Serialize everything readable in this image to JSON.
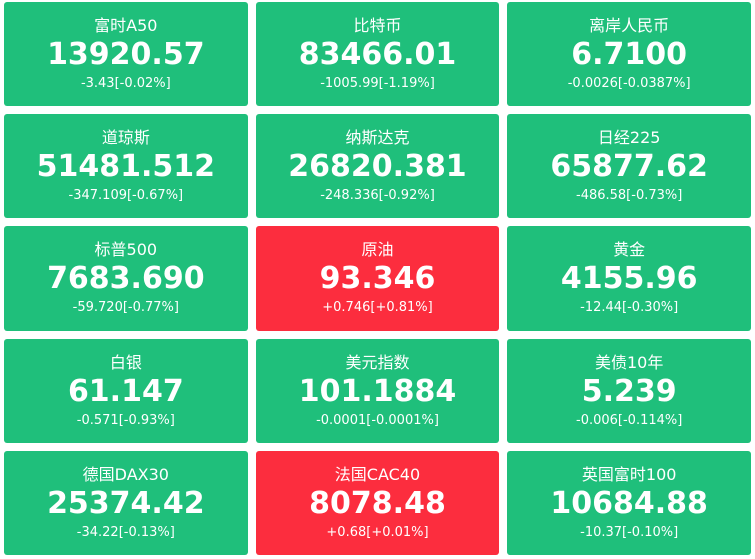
{
  "tiles": [
    {
      "name": "富时A50",
      "price": "13920.57",
      "change": "-3.43[-0.02%]",
      "color": "#1fbf7b"
    },
    {
      "name": "比特币",
      "price": "83466.01",
      "change": "-1005.99[-1.19%]",
      "color": "#1fbf7b"
    },
    {
      "name": "离岸人民币",
      "price": "6.7100",
      "change": "-0.0026[-0.0387%]",
      "color": "#1fbf7b"
    },
    {
      "name": "道琼斯",
      "price": "51481.512",
      "change": "-347.109[-0.67%]",
      "color": "#1fbf7b"
    },
    {
      "name": "纳斯达克",
      "price": "26820.381",
      "change": "-248.336[-0.92%]",
      "color": "#1fbf7b"
    },
    {
      "name": "日经225",
      "price": "65877.62",
      "change": "-486.58[-0.73%]",
      "color": "#1fbf7b"
    },
    {
      "name": "标普500",
      "price": "7683.690",
      "change": "-59.720[-0.77%]",
      "color": "#1fbf7b"
    },
    {
      "name": "原油",
      "price": "93.346",
      "change": "+0.746[+0.81%]",
      "color": "#fc2d3e"
    },
    {
      "name": "黄金",
      "price": "4155.96",
      "change": "-12.44[-0.30%]",
      "color": "#1fbf7b"
    },
    {
      "name": "白银",
      "price": "61.147",
      "change": "-0.571[-0.93%]",
      "color": "#1fbf7b"
    },
    {
      "name": "美元指数",
      "price": "101.1884",
      "change": "-0.0001[-0.0001%]",
      "color": "#1fbf7b"
    },
    {
      "name": "美债10年",
      "price": "5.239",
      "change": "-0.006[-0.114%]",
      "color": "#1fbf7b"
    },
    {
      "name": "德国DAX30",
      "price": "25374.42",
      "change": "-34.22[-0.13%]",
      "color": "#1fbf7b"
    },
    {
      "name": "法国CAC40",
      "price": "8078.48",
      "change": "+0.68[+0.01%]",
      "color": "#fc2d3e"
    },
    {
      "name": "英国富时100",
      "price": "10684.88",
      "change": "-10.37[-0.10%]",
      "color": "#1fbf7b"
    }
  ]
}
